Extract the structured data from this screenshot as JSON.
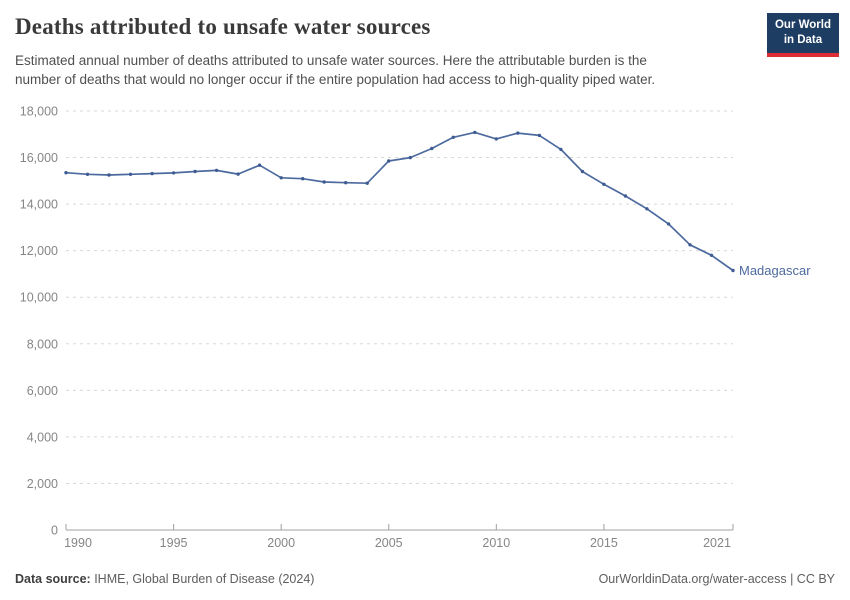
{
  "header": {
    "title": "Deaths attributed to unsafe water sources",
    "subtitle_lines": [
      "Estimated annual number of deaths attributed to unsafe water sources. Here the attributable burden is the",
      "number of deaths that would no longer occur if the entire population had access to high-quality piped water."
    ],
    "logo": {
      "line1": "Our World",
      "line2": "in Data",
      "bg_color": "#1d3d63",
      "accent_color": "#dc2c34"
    }
  },
  "chart_data": {
    "type": "line",
    "title": "Deaths attributed to unsafe water sources",
    "entity_label": "Madagascar",
    "x": [
      1990,
      1991,
      1992,
      1993,
      1994,
      1995,
      1996,
      1997,
      1998,
      1999,
      2000,
      2001,
      2002,
      2003,
      2004,
      2005,
      2006,
      2007,
      2008,
      2009,
      2010,
      2011,
      2012,
      2013,
      2014,
      2015,
      2016,
      2017,
      2018,
      2019,
      2020,
      2021
    ],
    "values": [
      15350,
      15280,
      15250,
      15280,
      15310,
      15340,
      15400,
      15450,
      15290,
      15670,
      15130,
      15090,
      14950,
      14920,
      14900,
      15850,
      16000,
      16390,
      16870,
      17080,
      16800,
      17050,
      16950,
      16350,
      15400,
      14850,
      14350,
      13800,
      13150,
      12250,
      11800,
      11150
    ],
    "xlim": [
      1990,
      2021
    ],
    "ylim": [
      0,
      18000
    ],
    "yticks": [
      0,
      2000,
      4000,
      6000,
      8000,
      10000,
      12000,
      14000,
      16000,
      18000
    ],
    "xticks": [
      1990,
      1995,
      2000,
      2005,
      2010,
      2015,
      2021
    ],
    "grid": "horizontal-dashed",
    "legend_position": "end-of-line-label",
    "line_color": "#4d6a9f",
    "point_color": "#3f5c92",
    "label_color": "#4d6a9f",
    "gridline_color": "#d8d8d8",
    "axis_color": "#a0a0a0",
    "tick_text_color": "#868686"
  },
  "footer": {
    "source_label": "Data source:",
    "source_text": " IHME, Global Burden of Disease (2024)",
    "right_text": "OurWorldinData.org/water-access | CC BY"
  }
}
